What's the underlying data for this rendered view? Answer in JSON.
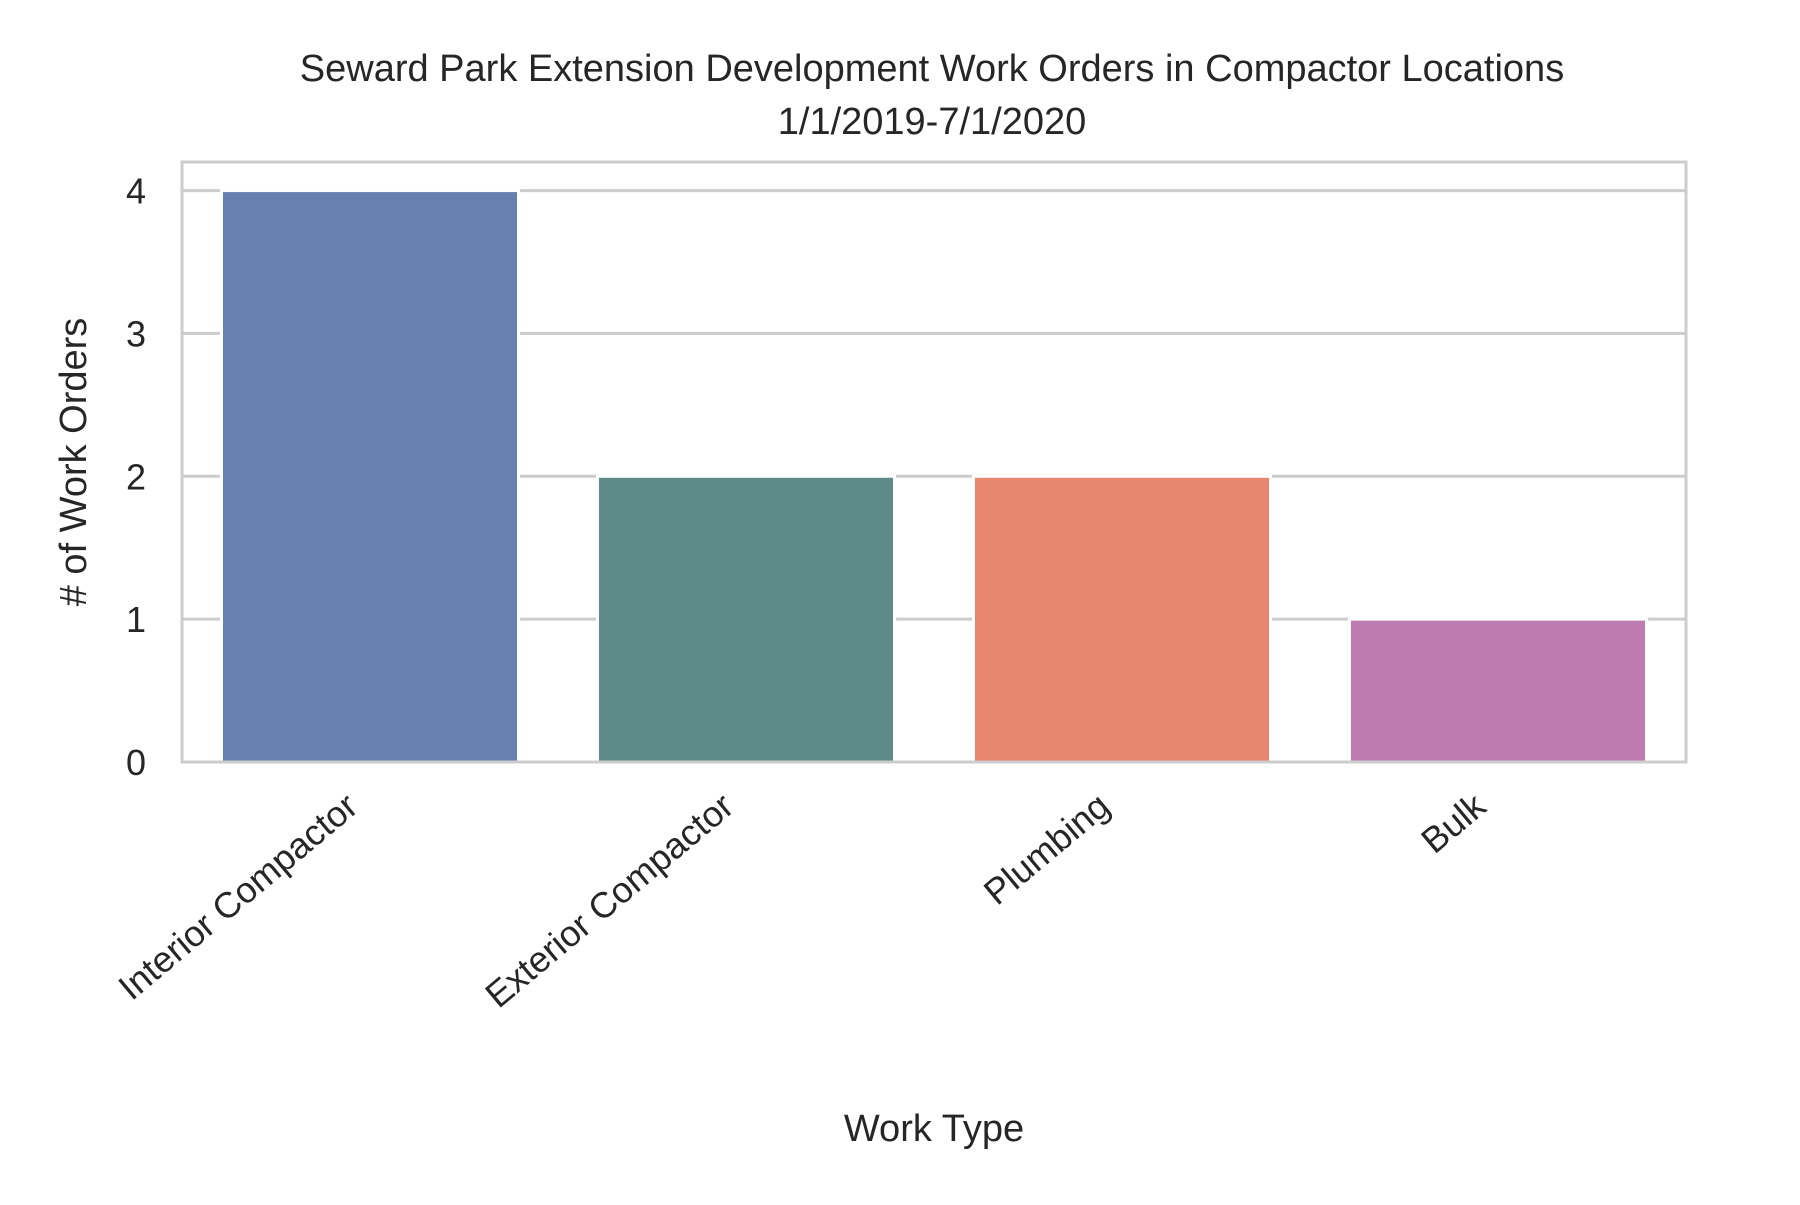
{
  "chart_data": {
    "type": "bar",
    "title_lines": [
      "Seward Park Extension Development Work Orders in Compactor Locations",
      "1/1/2019-7/1/2020"
    ],
    "xlabel": "Work Type",
    "ylabel": "# of Work Orders",
    "categories": [
      "Interior Compactor",
      "Exterior Compactor",
      "Plumbing",
      "Bulk"
    ],
    "values": [
      4,
      2,
      2,
      1
    ],
    "colors": [
      "#6680b0",
      "#5e8a87",
      "#e88670",
      "#bd7bb0"
    ],
    "ylim": [
      0,
      4.2
    ],
    "yticks": [
      0,
      1,
      2,
      3,
      4
    ],
    "grid": "horizontal",
    "legend": "none"
  },
  "style": {
    "grid_color": "#cccccc",
    "frame_color": "#cccccc"
  }
}
